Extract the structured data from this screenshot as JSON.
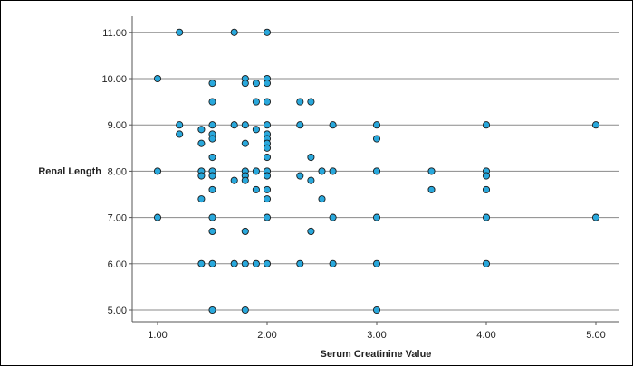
{
  "chart_data": {
    "type": "scatter",
    "title": "",
    "xlabel": "Serum Creatinine Value",
    "ylabel": "Renal Length",
    "xlim": [
      0.85,
      5.2
    ],
    "ylim": [
      4.85,
      11.3
    ],
    "x_ticks": [
      "1.00",
      "2.00",
      "3.00",
      "4.00",
      "5.00"
    ],
    "y_ticks": [
      "5.00",
      "6.00",
      "7.00",
      "8.00",
      "9.00",
      "10.00",
      "11.00"
    ],
    "grid": "horizontal",
    "marker_color": "#29A8DC",
    "marker_edge": "#1a1a1a",
    "points": [
      [
        1.0,
        10.0
      ],
      [
        1.0,
        8.0
      ],
      [
        1.0,
        7.0
      ],
      [
        1.2,
        11.0
      ],
      [
        1.2,
        9.0
      ],
      [
        1.2,
        8.8
      ],
      [
        1.4,
        8.9
      ],
      [
        1.4,
        8.6
      ],
      [
        1.4,
        8.0
      ],
      [
        1.4,
        7.9
      ],
      [
        1.4,
        7.4
      ],
      [
        1.4,
        6.0
      ],
      [
        1.5,
        9.9
      ],
      [
        1.5,
        9.5
      ],
      [
        1.5,
        9.0
      ],
      [
        1.5,
        8.8
      ],
      [
        1.5,
        8.7
      ],
      [
        1.5,
        8.3
      ],
      [
        1.5,
        8.0
      ],
      [
        1.5,
        7.9
      ],
      [
        1.5,
        7.6
      ],
      [
        1.5,
        7.0
      ],
      [
        1.5,
        6.7
      ],
      [
        1.5,
        6.0
      ],
      [
        1.5,
        5.0
      ],
      [
        1.7,
        11.0
      ],
      [
        1.7,
        9.0
      ],
      [
        1.7,
        7.8
      ],
      [
        1.7,
        6.0
      ],
      [
        1.8,
        10.0
      ],
      [
        1.8,
        9.9
      ],
      [
        1.8,
        9.0
      ],
      [
        1.8,
        8.6
      ],
      [
        1.8,
        8.0
      ],
      [
        1.8,
        7.9
      ],
      [
        1.8,
        7.8
      ],
      [
        1.8,
        6.7
      ],
      [
        1.8,
        6.0
      ],
      [
        1.8,
        5.0
      ],
      [
        1.9,
        9.9
      ],
      [
        1.9,
        9.5
      ],
      [
        1.9,
        8.9
      ],
      [
        1.9,
        8.0
      ],
      [
        1.9,
        7.6
      ],
      [
        1.9,
        6.0
      ],
      [
        2.0,
        11.0
      ],
      [
        2.0,
        10.0
      ],
      [
        2.0,
        9.9
      ],
      [
        2.0,
        9.5
      ],
      [
        2.0,
        9.0
      ],
      [
        2.0,
        8.8
      ],
      [
        2.0,
        8.7
      ],
      [
        2.0,
        8.6
      ],
      [
        2.0,
        8.5
      ],
      [
        2.0,
        8.3
      ],
      [
        2.0,
        8.0
      ],
      [
        2.0,
        7.9
      ],
      [
        2.0,
        7.6
      ],
      [
        2.0,
        7.4
      ],
      [
        2.0,
        7.0
      ],
      [
        2.0,
        6.0
      ],
      [
        2.3,
        9.5
      ],
      [
        2.3,
        9.0
      ],
      [
        2.3,
        7.9
      ],
      [
        2.3,
        6.0
      ],
      [
        2.4,
        9.5
      ],
      [
        2.4,
        8.3
      ],
      [
        2.4,
        7.8
      ],
      [
        2.4,
        6.7
      ],
      [
        2.5,
        8.0
      ],
      [
        2.5,
        7.4
      ],
      [
        2.6,
        9.0
      ],
      [
        2.6,
        8.0
      ],
      [
        2.6,
        7.0
      ],
      [
        2.6,
        6.0
      ],
      [
        3.0,
        9.0
      ],
      [
        3.0,
        8.7
      ],
      [
        3.0,
        8.0
      ],
      [
        3.0,
        7.0
      ],
      [
        3.0,
        6.0
      ],
      [
        3.0,
        5.0
      ],
      [
        3.5,
        8.0
      ],
      [
        3.5,
        7.6
      ],
      [
        4.0,
        9.0
      ],
      [
        4.0,
        8.0
      ],
      [
        4.0,
        7.9
      ],
      [
        4.0,
        7.6
      ],
      [
        4.0,
        7.0
      ],
      [
        4.0,
        6.0
      ],
      [
        5.0,
        9.0
      ],
      [
        5.0,
        7.0
      ]
    ]
  }
}
